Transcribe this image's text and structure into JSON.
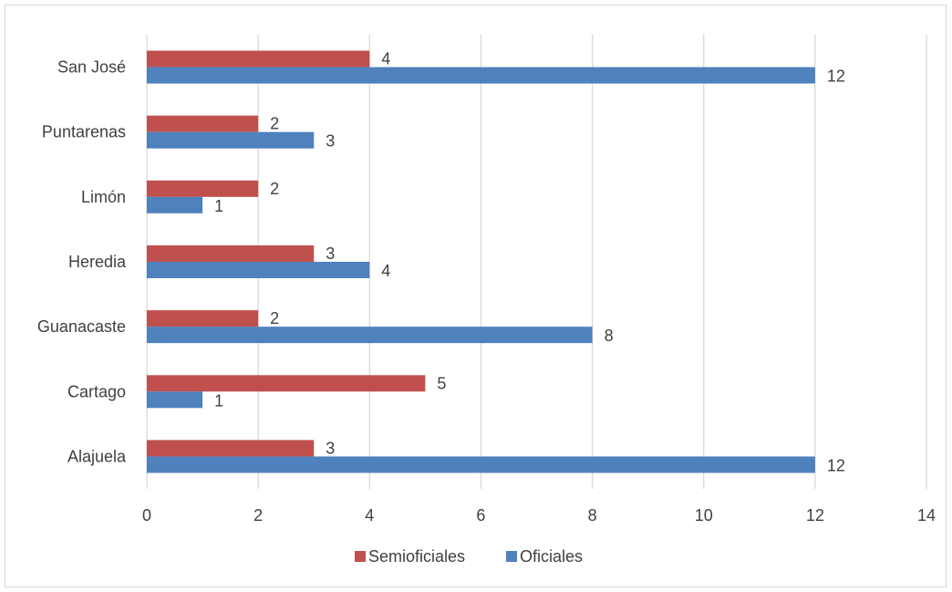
{
  "chart_data": {
    "type": "bar",
    "orientation": "horizontal",
    "title": "",
    "xlabel": "",
    "ylabel": "",
    "categories": [
      "Alajuela",
      "Cartago",
      "Guanacaste",
      "Heredia",
      "Limón",
      "Puntarenas",
      "San José"
    ],
    "series": [
      {
        "name": "Semioficiales",
        "color": "#c0504d",
        "values": [
          3,
          5,
          2,
          3,
          2,
          2,
          4
        ]
      },
      {
        "name": "Oficiales",
        "color": "#4f81bd",
        "values": [
          12,
          1,
          8,
          4,
          1,
          3,
          12
        ]
      }
    ],
    "xlim": [
      0,
      14
    ],
    "xticks": [
      "0",
      "2",
      "4",
      "6",
      "8",
      "10",
      "12",
      "14"
    ],
    "grid": true,
    "legend_position": "bottom",
    "data_labels": true
  }
}
